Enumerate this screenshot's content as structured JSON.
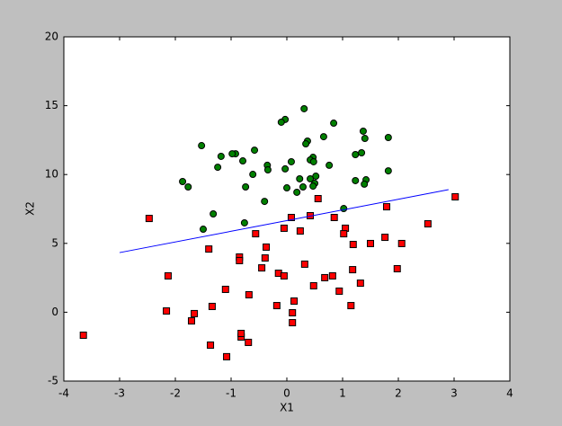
{
  "chart_data": {
    "type": "scatter",
    "xlabel": "X1",
    "ylabel": "X2",
    "xlim": [
      -4,
      4
    ],
    "ylim": [
      -5,
      20
    ],
    "xticks": [
      -4,
      -3,
      -2,
      -1,
      0,
      1,
      2,
      3,
      4
    ],
    "yticks": [
      -5,
      0,
      5,
      10,
      15,
      20
    ],
    "series": [
      {
        "kind": "points",
        "marker": "circle",
        "color": "#008000",
        "x": [
          -1.53,
          -0.92,
          -0.98,
          -0.58,
          -1.18,
          -0.79,
          -1.24,
          -0.35,
          -0.61,
          -0.34,
          -1.87,
          -1.77,
          -0.74,
          -0.4,
          -1.32,
          -1.5,
          -0.76,
          -0.03,
          -0.1,
          0.31,
          0.37,
          0.34,
          0.66,
          0.84,
          1.37,
          1.4,
          1.23,
          1.34,
          0.47,
          0.42,
          0.48,
          0.08,
          0.76,
          -0.03,
          0.52,
          0.5,
          0.42,
          0.23,
          0.18,
          0.47,
          0.0,
          0.29,
          1.23,
          1.42,
          1.39,
          1.82,
          1.82,
          1.02
        ],
        "values": [
          12.1,
          11.51,
          11.51,
          11.77,
          11.32,
          10.99,
          10.53,
          10.67,
          10.01,
          10.34,
          9.49,
          9.1,
          9.1,
          8.05,
          7.14,
          6.03,
          6.49,
          14.0,
          13.8,
          14.78,
          12.43,
          12.23,
          12.75,
          13.73,
          13.15,
          12.62,
          11.45,
          11.58,
          11.25,
          11.06,
          10.93,
          10.93,
          10.67,
          10.41,
          9.88,
          9.36,
          9.69,
          9.69,
          8.71,
          9.16,
          9.03,
          9.1,
          9.56,
          9.62,
          9.3,
          12.69,
          10.27,
          7.53
        ]
      },
      {
        "kind": "points",
        "marker": "square",
        "color": "#ff0000",
        "x": [
          -2.47,
          -3.65,
          -2.13,
          -2.16,
          -1.66,
          -1.71,
          -1.34,
          -1.37,
          -1.08,
          -1.1,
          -1.4,
          -0.82,
          -0.82,
          -0.85,
          -0.85,
          -0.69,
          -0.68,
          -0.37,
          -0.39,
          -0.45,
          -0.56,
          -0.18,
          -0.15,
          -0.05,
          -0.05,
          0.08,
          0.24,
          0.42,
          0.56,
          0.1,
          0.1,
          0.13,
          0.32,
          0.48,
          0.68,
          0.82,
          0.85,
          0.94,
          1.05,
          1.02,
          1.19,
          1.18,
          1.15,
          1.32,
          1.5,
          1.76,
          1.79,
          2.06,
          1.98,
          2.53,
          3.02
        ],
        "values": [
          6.81,
          -1.67,
          2.64,
          0.09,
          -0.1,
          -0.63,
          0.42,
          -2.39,
          -3.23,
          1.66,
          4.59,
          -1.8,
          -1.54,
          4.01,
          3.75,
          -2.19,
          1.27,
          4.73,
          3.94,
          3.22,
          5.7,
          0.48,
          2.83,
          2.64,
          6.1,
          6.88,
          5.9,
          7.01,
          8.25,
          -0.04,
          -0.76,
          0.81,
          3.49,
          1.92,
          2.51,
          2.64,
          6.88,
          1.53,
          6.1,
          5.7,
          4.92,
          3.09,
          0.48,
          2.11,
          4.99,
          5.44,
          7.66,
          4.99,
          3.16,
          6.42,
          8.38
        ]
      },
      {
        "kind": "line",
        "color": "#0000ff",
        "x": [
          -3.0,
          2.9
        ],
        "values": [
          4.33,
          8.9
        ]
      }
    ]
  }
}
